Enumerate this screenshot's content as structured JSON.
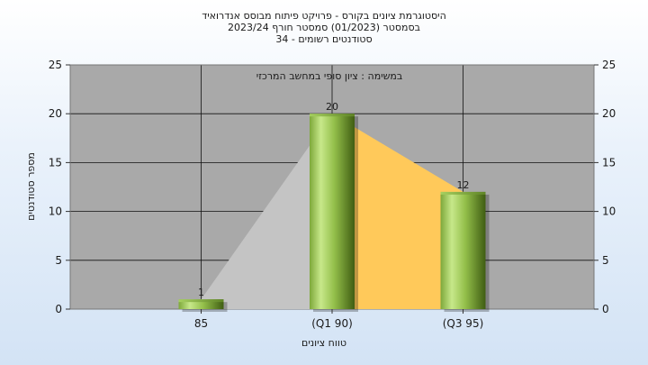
{
  "chart_data": {
    "type": "bar",
    "title_lines": [
      "היסטוגרמת ציונים בקורס - פרויקט פיתוח מבוסס אנדרואיד",
      "בסמסטר  (01/2023)  סמסטר חורף 2023/24",
      "סטודנטים רשומים - 34"
    ],
    "annotation": "במשימה : ציון סופי במחשב המרכזי",
    "categories": [
      "85",
      "(Q1 90)",
      "(Q3 95)"
    ],
    "values": [
      1,
      20,
      12
    ],
    "data_labels": [
      "1",
      "20",
      "12"
    ],
    "ylabel": "מספר סטודנטים",
    "xlabel": "טווח ציונים",
    "ylim": [
      0,
      25
    ],
    "yticks": [
      "0",
      "5",
      "10",
      "15",
      "20",
      "25"
    ],
    "grid": true,
    "colors": {
      "plot_bg": "#a9a9a9",
      "bar_light": "#c7e88a",
      "bar_dark": "#3f5d12",
      "area_gray": "#c4c4c4",
      "area_orange": "#ffc95a"
    }
  }
}
